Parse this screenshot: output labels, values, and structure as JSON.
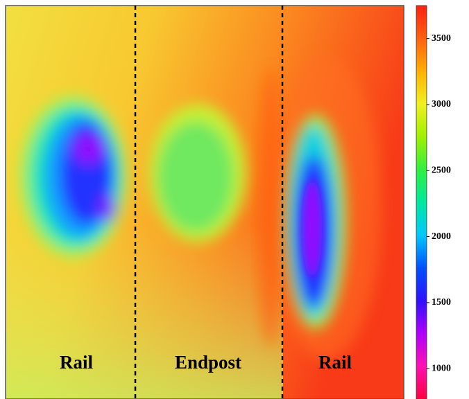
{
  "chart_data": {
    "type": "heatmap",
    "annotations": [
      "Rail",
      "Endpost",
      "Rail"
    ],
    "colormap": [
      "#ff0040",
      "#ff10b0",
      "#b000ff",
      "#3010ff",
      "#0050ff",
      "#00c8ff",
      "#00e8a0",
      "#30f040",
      "#a0f000",
      "#f0f020",
      "#ffb000",
      "#ff6010",
      "#ff2010"
    ],
    "clim": [
      770,
      3750
    ],
    "cticks": [
      1000,
      1500,
      2000,
      2500,
      3000,
      3500
    ]
  }
}
